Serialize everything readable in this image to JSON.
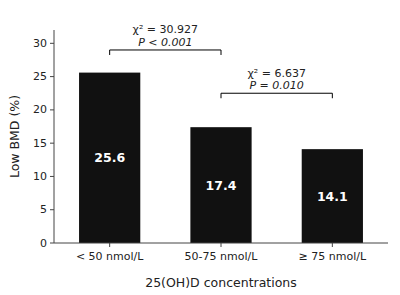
{
  "chart_data": {
    "type": "bar",
    "categories": [
      "< 50 nmol/L",
      "50-75 nmol/L",
      "≥ 75 nmol/L"
    ],
    "values": [
      25.6,
      17.4,
      14.1
    ],
    "color": "#111111",
    "data_labels": true,
    "xlabel": "25(OH)D concentrations",
    "ylabel": "Low BMD (%)",
    "ylim": [
      0,
      32
    ],
    "yticks": [
      0,
      5,
      10,
      15,
      20,
      25,
      30
    ],
    "grid": false,
    "annotations": [
      {
        "from": 0,
        "to": 1,
        "y": 29.0,
        "lines": [
          "χ² = 30.927",
          "P < 0.001"
        ]
      },
      {
        "from": 1,
        "to": 2,
        "y": 22.5,
        "lines": [
          "χ² = 6.637",
          "P = 0.010"
        ]
      }
    ]
  }
}
